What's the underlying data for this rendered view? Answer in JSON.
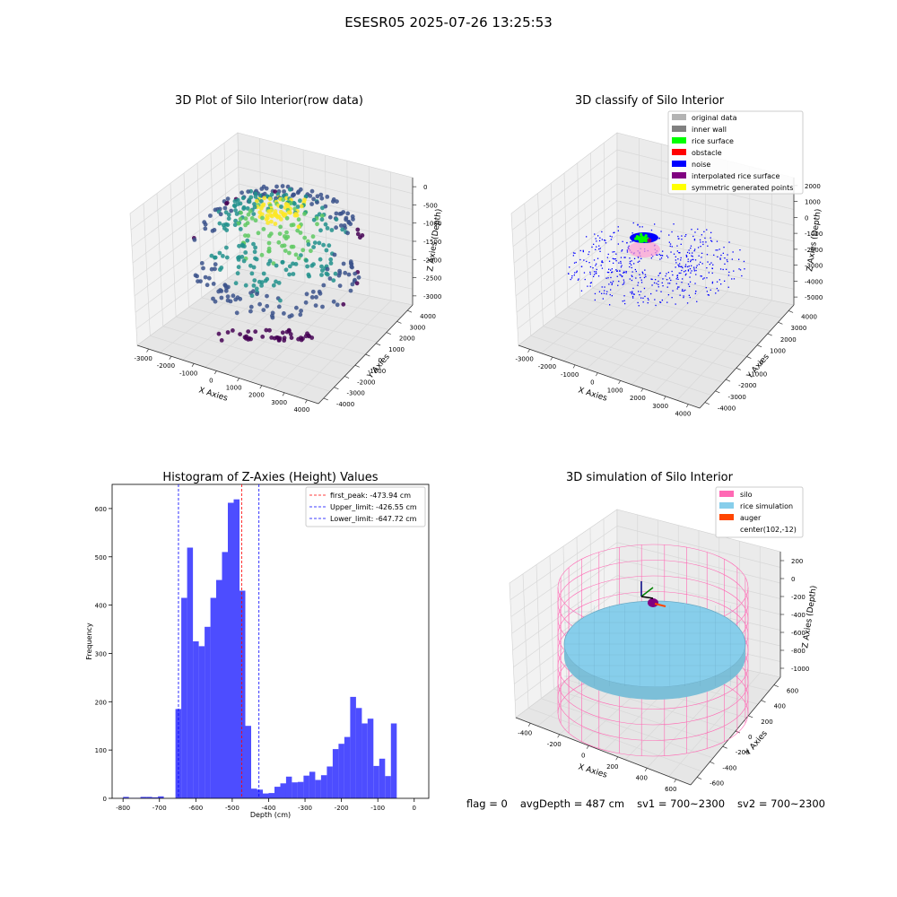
{
  "figure": {
    "suptitle": "ESESR05 2025-07-26 13:25:53"
  },
  "footer": {
    "flag": "flag = 0",
    "avg_depth": "avgDepth = 487 cm",
    "sv1": "sv1 = 700~2300",
    "sv2": "sv2 = 700~2300"
  },
  "chart_data": [
    {
      "type": "scatter",
      "projection": "3d",
      "title": "3D Plot of Silo Interior(row data)",
      "xlabel": "X Axies",
      "ylabel": "Y Axies",
      "zlabel": "Z Axies (Depth)",
      "x_ticks": [
        -3000,
        -2000,
        -1000,
        0,
        1000,
        2000,
        3000,
        4000
      ],
      "y_ticks": [
        -4000,
        -3000,
        -2000,
        -1000,
        0,
        1000,
        2000,
        3000,
        4000
      ],
      "z_ticks": [
        -3000,
        -2500,
        -2000,
        -1500,
        -1000,
        -500,
        0
      ],
      "xlim": [
        -3500,
        4500
      ],
      "ylim": [
        -4500,
        4500
      ],
      "zlim": [
        -3300,
        200
      ],
      "colormap": [
        "#440154",
        "#3b528b",
        "#21918c",
        "#5ec962",
        "#fde725"
      ],
      "grid": true
    },
    {
      "type": "scatter",
      "projection": "3d",
      "title": "3D classify of Silo Interior",
      "xlabel": "X Axies",
      "ylabel": "Y Axies",
      "zlabel": "Z Axies (Depth)",
      "x_ticks": [
        -3000,
        -2000,
        -1000,
        0,
        1000,
        2000,
        3000,
        4000
      ],
      "y_ticks": [
        -4000,
        -3000,
        -2000,
        -1000,
        0,
        1000,
        2000,
        3000,
        4000
      ],
      "z_ticks": [
        -5000,
        -4000,
        -3000,
        -2000,
        -1000,
        0,
        1000,
        2000
      ],
      "xlim": [
        -3500,
        4500
      ],
      "ylim": [
        -4500,
        4500
      ],
      "zlim": [
        -5500,
        2500
      ],
      "grid": true,
      "legend": {
        "placement": "top-right",
        "entries": [
          {
            "label": "original data",
            "color": "#b3b3b3"
          },
          {
            "label": "inner wall",
            "color": "#808080"
          },
          {
            "label": "rice surface",
            "color": "#00ff00"
          },
          {
            "label": "obstacle",
            "color": "#ff0000"
          },
          {
            "label": "noise",
            "color": "#0000ff"
          },
          {
            "label": "interpolated rice surface",
            "color": "#800080"
          },
          {
            "label": "symmetric generated points",
            "color": "#ffff00"
          }
        ]
      }
    },
    {
      "type": "bar",
      "title": "Histogram of Z-Axies (Height) Values",
      "xlabel": "Depth (cm)",
      "ylabel": "Frequency",
      "xlim": [
        -830,
        40
      ],
      "ylim": [
        0,
        650
      ],
      "x_ticks": [
        -800,
        -700,
        -600,
        -500,
        -400,
        -300,
        -200,
        -100,
        0
      ],
      "y_ticks": [
        0,
        100,
        200,
        300,
        400,
        500,
        600
      ],
      "bar_color": "#4d4dff",
      "bin_width": 16,
      "bin_start": -800,
      "values": [
        3,
        1,
        1,
        3,
        3,
        2,
        4,
        0,
        0,
        185,
        415,
        519,
        325,
        315,
        355,
        415,
        452,
        510,
        612,
        619,
        430,
        150,
        20,
        18,
        10,
        11,
        24,
        31,
        45,
        33,
        34,
        47,
        55,
        38,
        48,
        66,
        102,
        113,
        127,
        210,
        187,
        155,
        165,
        67,
        82,
        46,
        155
      ],
      "vlines": [
        {
          "x": -473.94,
          "color": "#ff0000",
          "label": "first_peak: -473.94 cm"
        },
        {
          "x": -426.55,
          "color": "#0000ff",
          "label": "Upper_limit: -426.55 cm"
        },
        {
          "x": -647.72,
          "color": "#0000ff",
          "label": "Lower_limit: -647.72 cm"
        }
      ],
      "legend": "top-right"
    },
    {
      "type": "surface",
      "projection": "3d",
      "title": "3D simulation of Silo Interior",
      "xlabel": "X Axies",
      "ylabel": "Y Axies",
      "zlabel": "Z Axies (Depth)",
      "x_ticks": [
        -400,
        -200,
        0,
        200,
        400,
        600
      ],
      "y_ticks": [
        -600,
        -400,
        -200,
        0,
        200,
        400,
        600
      ],
      "z_ticks": [
        -1000,
        -800,
        -600,
        -400,
        -200,
        0,
        200
      ],
      "xlim": [
        -500,
        700
      ],
      "ylim": [
        -700,
        700
      ],
      "zlim": [
        -1050,
        300
      ],
      "grid": true,
      "legend": {
        "placement": "top-right",
        "entries": [
          {
            "label": "silo",
            "color": "#ff69b4"
          },
          {
            "label": "rice simulation",
            "color": "#87ceeb"
          },
          {
            "label": "auger",
            "color": "#ff4500"
          },
          {
            "label": "center(102,-12)",
            "color": ""
          }
        ]
      }
    }
  ]
}
